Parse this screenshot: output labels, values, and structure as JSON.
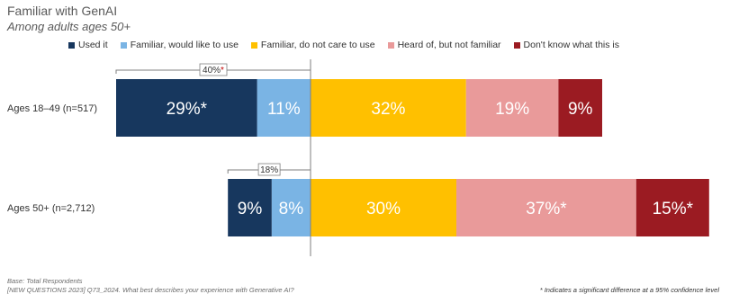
{
  "chart_data": {
    "type": "bar",
    "orientation": "horizontal",
    "stacked": true,
    "diverging": true,
    "title": "Familiar with GenAI",
    "subtitle": "Among adults ages 50+",
    "categories": [
      "Ages 18–49 (n=517)",
      "Ages 50+ (n=2,712)"
    ],
    "series": [
      {
        "name": "Used it",
        "color": "#17375e",
        "values": [
          29,
          9
        ],
        "labels": [
          "29%*",
          "9%"
        ],
        "side": "left"
      },
      {
        "name": "Familiar, would like to use",
        "color": "#7ab4e4",
        "values": [
          11,
          8
        ],
        "labels": [
          "11%",
          "8%"
        ],
        "side": "left"
      },
      {
        "name": "Familiar, do not care to use",
        "color": "#ffc000",
        "values": [
          32,
          30
        ],
        "labels": [
          "32%",
          "30%"
        ],
        "side": "right"
      },
      {
        "name": "Heard of, but not familiar",
        "color": "#e99a9a",
        "values": [
          19,
          37
        ],
        "labels": [
          "19%",
          "37%*"
        ],
        "side": "right"
      },
      {
        "name": "Don't know what this is",
        "color": "#9b1b22",
        "values": [
          9,
          15
        ],
        "labels": [
          "9%",
          "15%*"
        ],
        "side": "right"
      }
    ],
    "nets": [
      {
        "value": 40,
        "label": "40%",
        "mark": "*"
      },
      {
        "value": 18,
        "label": "18%",
        "mark": ""
      }
    ],
    "legend_position": "top",
    "grid": false
  },
  "footnotes": {
    "base": "Base: Total Respondents",
    "question": "[NEW QUESTIONS 2023] Q73_2024. What best describes your experience with Generative AI?",
    "significance": "* Indicates a significant difference at a 95% confidence level"
  }
}
